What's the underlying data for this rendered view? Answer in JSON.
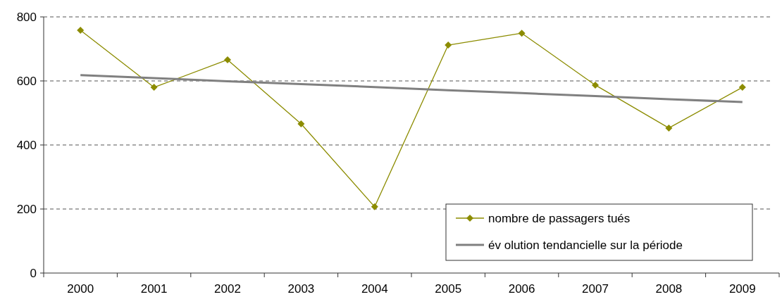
{
  "chart_data": {
    "type": "line",
    "categories": [
      "2000",
      "2001",
      "2002",
      "2003",
      "2004",
      "2005",
      "2006",
      "2007",
      "2008",
      "2009"
    ],
    "series": [
      {
        "name": "nombre de passagers tués",
        "color": "#8c8c00",
        "marker": "diamond",
        "values": [
          758,
          580,
          666,
          466,
          207,
          712,
          749,
          587,
          453,
          580
        ]
      },
      {
        "name": "év olution tendancielle sur la période",
        "color": "#808080",
        "marker": "none",
        "values": [
          618,
          609,
          599,
          590,
          581,
          571,
          562,
          553,
          543,
          534
        ]
      }
    ],
    "ylim": [
      0,
      800
    ],
    "yticks": [
      0,
      200,
      400,
      600,
      800
    ],
    "grid": "y",
    "legend": "bottom right"
  }
}
